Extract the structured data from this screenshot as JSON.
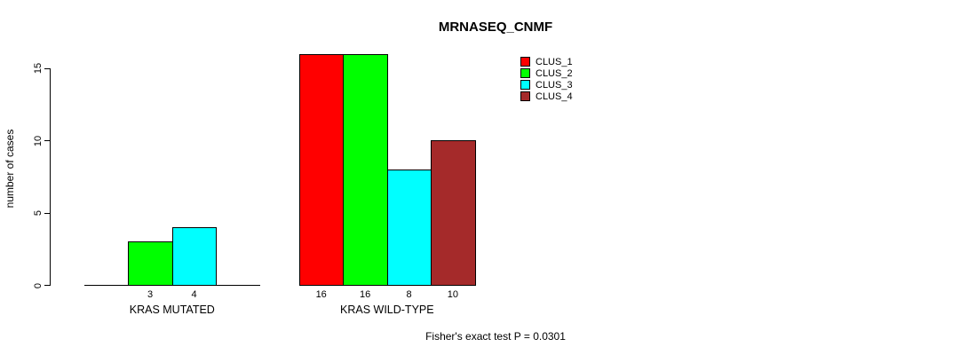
{
  "chart_data": {
    "type": "bar",
    "title": "MRNASEQ_CNMF",
    "ylabel": "number of cases",
    "xlabel": "",
    "ylim": [
      0,
      16
    ],
    "yticks": [
      0,
      5,
      10,
      15
    ],
    "grid": false,
    "legend_position": "top-right",
    "categories": [
      "KRAS MUTATED",
      "KRAS WILD-TYPE"
    ],
    "series": [
      {
        "name": "CLUS_1",
        "color": "#FF0000",
        "values": [
          0,
          16
        ]
      },
      {
        "name": "CLUS_2",
        "color": "#00FF00",
        "values": [
          3,
          16
        ]
      },
      {
        "name": "CLUS_3",
        "color": "#00FFFF",
        "values": [
          4,
          8
        ]
      },
      {
        "name": "CLUS_4",
        "color": "#A52A2A",
        "values": [
          0,
          10
        ]
      }
    ],
    "bar_value_labels": [
      [
        "",
        "3",
        "4",
        ""
      ],
      [
        "16",
        "16",
        "8",
        "10"
      ]
    ],
    "annotation": "Fisher's exact test P = 0.0301"
  },
  "colors": {
    "background": "#FFFFFF",
    "axis": "#000000",
    "text": "#000000"
  }
}
